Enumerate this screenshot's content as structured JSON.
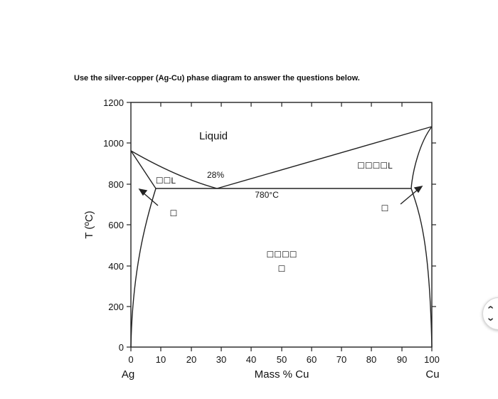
{
  "question": {
    "title": "Use the silver-copper (Ag-Cu) phase diagram to answer the questions below."
  },
  "diagram": {
    "y_axis_label": "T (ºC)",
    "y_ticks": [
      "0",
      "200",
      "400",
      "600",
      "800",
      "1000",
      "1200"
    ],
    "x_ticks": [
      "0",
      "10",
      "20",
      "30",
      "40",
      "50",
      "60",
      "70",
      "80",
      "90",
      "100"
    ],
    "x_axis_label": "Mass % Cu",
    "left_element": "Ag",
    "right_element": "Cu",
    "region_liquid": "Liquid",
    "eutectic_composition": "28%",
    "eutectic_temperature": "780°C",
    "left_two_phase_label": "☐☐L",
    "right_two_phase_label": "☐☐☐☐L",
    "left_solid_label": "☐",
    "right_solid_label": "☐",
    "center_label_line1": "☐☐☐☐",
    "center_label_line2": "☐"
  },
  "navigation": {
    "up_symbol": "‹",
    "down_symbol": "›"
  }
}
